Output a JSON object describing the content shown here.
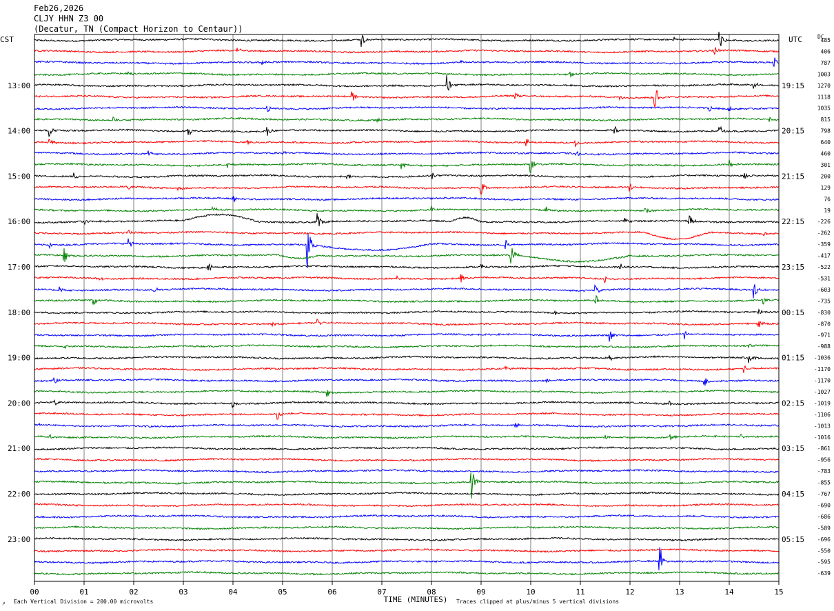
{
  "header": {
    "date": "Feb26,2026",
    "station": "CLJY HHN Z3 00",
    "location": "(Decatur, TN (Compact Horizon to Centaur))"
  },
  "left_zone": "CST",
  "right_zone": "UTC",
  "dc_label": "DC",
  "footer": {
    "scale_note": "Each Vertical Division =  200.00 microvolts",
    "clip_note": "Traces clipped at plus/minus 5 vertical divisions",
    "corner_mark": "↗"
  },
  "chart_data": {
    "type": "helicorder",
    "xlabel": "TIME (MINUTES)",
    "x_ticks": [
      "00",
      "01",
      "02",
      "03",
      "04",
      "05",
      "06",
      "07",
      "08",
      "09",
      "10",
      "11",
      "12",
      "13",
      "14",
      "15"
    ],
    "xlim": [
      0,
      15
    ],
    "trace_minutes": 15,
    "trace_count": 48,
    "trace_colors": [
      "#000000",
      "#ff0000",
      "#0000ff",
      "#008000"
    ],
    "left_hour_labels": [
      "13:00",
      "14:00",
      "15:00",
      "16:00",
      "17:00",
      "18:00",
      "19:00",
      "20:00",
      "21:00",
      "22:00",
      "23:00"
    ],
    "right_hour_labels": [
      "19:15",
      "20:15",
      "21:15",
      "22:15",
      "23:15",
      "00:15",
      "01:15",
      "02:15",
      "03:15",
      "04:15",
      "05:15"
    ],
    "dc_offsets": [
      "485",
      "406",
      "787",
      "1003",
      "1270",
      "1118",
      "1035",
      "815",
      "798",
      "640",
      "460",
      "301",
      "200",
      "129",
      "76",
      "19",
      "-226",
      "-262",
      "-359",
      "-417",
      "-522",
      "-531",
      "-603",
      "-735",
      "-830",
      "-870",
      "-971",
      "-988",
      "-1036",
      "-1170",
      "-1170",
      "-1027",
      "-1019",
      "-1106",
      "-1013",
      "-1016",
      "-861",
      "-956",
      "-783",
      "-855",
      "-767",
      "-690",
      "-686",
      "-589",
      "-696",
      "-550",
      "-595",
      "-639"
    ],
    "events": [
      {
        "trace": 0,
        "minute": 6.6,
        "amp": 1.4
      },
      {
        "trace": 0,
        "minute": 13.8,
        "amp": 2.2
      },
      {
        "trace": 0,
        "minute": 12.9,
        "amp": 0.6
      },
      {
        "trace": 1,
        "minute": 13.7,
        "amp": 0.8
      },
      {
        "trace": 1,
        "minute": 4.1,
        "amp": 0.5
      },
      {
        "trace": 2,
        "minute": 8.6,
        "amp": 0.5
      },
      {
        "trace": 2,
        "minute": 14.9,
        "amp": 1.2
      },
      {
        "trace": 2,
        "minute": 4.6,
        "amp": 0.4
      },
      {
        "trace": 3,
        "minute": 10.8,
        "amp": 0.8
      },
      {
        "trace": 3,
        "minute": 1.9,
        "amp": 0.5
      },
      {
        "trace": 4,
        "minute": 8.3,
        "amp": 2.4
      },
      {
        "trace": 4,
        "minute": 14.5,
        "amp": 0.9
      },
      {
        "trace": 5,
        "minute": 12.5,
        "amp": 3.0
      },
      {
        "trace": 5,
        "minute": 6.4,
        "amp": 1.3
      },
      {
        "trace": 5,
        "minute": 9.7,
        "amp": 0.7
      },
      {
        "trace": 5,
        "minute": 11.8,
        "amp": 0.6
      },
      {
        "trace": 6,
        "minute": 4.7,
        "amp": 0.6
      },
      {
        "trace": 6,
        "minute": 13.6,
        "amp": 0.6
      },
      {
        "trace": 6,
        "minute": 14.0,
        "amp": 0.6
      },
      {
        "trace": 7,
        "minute": 1.6,
        "amp": 0.7
      },
      {
        "trace": 7,
        "minute": 6.9,
        "amp": 0.5
      },
      {
        "trace": 7,
        "minute": 14.8,
        "amp": 0.6
      },
      {
        "trace": 8,
        "minute": 0.3,
        "amp": 1.2
      },
      {
        "trace": 8,
        "minute": 3.1,
        "amp": 1.0
      },
      {
        "trace": 8,
        "minute": 4.7,
        "amp": 0.8
      },
      {
        "trace": 8,
        "minute": 11.7,
        "amp": 0.9
      },
      {
        "trace": 8,
        "minute": 13.8,
        "amp": 1.3
      },
      {
        "trace": 9,
        "minute": 0.3,
        "amp": 0.8
      },
      {
        "trace": 9,
        "minute": 9.9,
        "amp": 1.0
      },
      {
        "trace": 9,
        "minute": 10.9,
        "amp": 0.8
      },
      {
        "trace": 9,
        "minute": 4.3,
        "amp": 0.6
      },
      {
        "trace": 10,
        "minute": 2.3,
        "amp": 0.6
      },
      {
        "trace": 10,
        "minute": 10.9,
        "amp": 0.6
      },
      {
        "trace": 10,
        "minute": 5.0,
        "amp": 0.4
      },
      {
        "trace": 11,
        "minute": 10.0,
        "amp": 1.6
      },
      {
        "trace": 11,
        "minute": 7.4,
        "amp": 1.0
      },
      {
        "trace": 11,
        "minute": 14.0,
        "amp": 0.9
      },
      {
        "trace": 11,
        "minute": 3.9,
        "amp": 0.6
      },
      {
        "trace": 12,
        "minute": 6.3,
        "amp": 1.3
      },
      {
        "trace": 12,
        "minute": 8.0,
        "amp": 1.1
      },
      {
        "trace": 12,
        "minute": 14.3,
        "amp": 1.0
      },
      {
        "trace": 12,
        "minute": 0.8,
        "amp": 0.6
      },
      {
        "trace": 13,
        "minute": 9.0,
        "amp": 1.6
      },
      {
        "trace": 13,
        "minute": 12.0,
        "amp": 0.9
      },
      {
        "trace": 13,
        "minute": 1.9,
        "amp": 0.6
      },
      {
        "trace": 13,
        "minute": 2.9,
        "amp": 0.6
      },
      {
        "trace": 14,
        "minute": 4.0,
        "amp": 0.9
      },
      {
        "trace": 15,
        "minute": 8.0,
        "amp": 0.9
      },
      {
        "trace": 15,
        "minute": 10.3,
        "amp": 0.8
      },
      {
        "trace": 15,
        "minute": 12.3,
        "amp": 0.8
      },
      {
        "trace": 15,
        "minute": 3.6,
        "amp": 0.6
      },
      {
        "trace": 16,
        "minute": 5.7,
        "amp": 1.9
      },
      {
        "trace": 16,
        "minute": 13.2,
        "amp": 1.3
      },
      {
        "trace": 16,
        "minute": 11.9,
        "amp": 0.8
      },
      {
        "trace": 16,
        "minute": 1.0,
        "amp": 0.8
      },
      {
        "trace": 17,
        "minute": 1.9,
        "amp": 0.5
      },
      {
        "trace": 17,
        "minute": 14.7,
        "amp": 0.5
      },
      {
        "trace": 18,
        "minute": 5.5,
        "amp": 4.5
      },
      {
        "trace": 18,
        "minute": 9.5,
        "amp": 1.0
      },
      {
        "trace": 18,
        "minute": 1.9,
        "amp": 1.0
      },
      {
        "trace": 18,
        "minute": 0.3,
        "amp": 0.6
      },
      {
        "trace": 19,
        "minute": 9.6,
        "amp": 2.4
      },
      {
        "trace": 19,
        "minute": 0.6,
        "amp": 1.6
      },
      {
        "trace": 20,
        "minute": 3.5,
        "amp": 1.0
      },
      {
        "trace": 20,
        "minute": 11.8,
        "amp": 0.8
      },
      {
        "trace": 20,
        "minute": 9.0,
        "amp": 0.6
      },
      {
        "trace": 21,
        "minute": 8.6,
        "amp": 0.8
      },
      {
        "trace": 21,
        "minute": 11.5,
        "amp": 0.7
      },
      {
        "trace": 21,
        "minute": 1.3,
        "amp": 0.6
      },
      {
        "trace": 21,
        "minute": 7.3,
        "amp": 0.5
      },
      {
        "trace": 22,
        "minute": 14.5,
        "amp": 1.9
      },
      {
        "trace": 22,
        "minute": 11.3,
        "amp": 1.2
      },
      {
        "trace": 22,
        "minute": 0.5,
        "amp": 1.2
      },
      {
        "trace": 22,
        "minute": 2.4,
        "amp": 0.8
      },
      {
        "trace": 23,
        "minute": 11.3,
        "amp": 1.5
      },
      {
        "trace": 23,
        "minute": 1.2,
        "amp": 1.0
      },
      {
        "trace": 23,
        "minute": 14.7,
        "amp": 0.8
      },
      {
        "trace": 24,
        "minute": 14.6,
        "amp": 0.7
      },
      {
        "trace": 24,
        "minute": 10.5,
        "amp": 0.5
      },
      {
        "trace": 25,
        "minute": 5.7,
        "amp": 0.8
      },
      {
        "trace": 25,
        "minute": 14.6,
        "amp": 0.7
      },
      {
        "trace": 25,
        "minute": 4.8,
        "amp": 0.5
      },
      {
        "trace": 26,
        "minute": 11.6,
        "amp": 1.1
      },
      {
        "trace": 26,
        "minute": 13.1,
        "amp": 0.9
      },
      {
        "trace": 27,
        "minute": 14.4,
        "amp": 0.7
      },
      {
        "trace": 27,
        "minute": 0.6,
        "amp": 0.5
      },
      {
        "trace": 28,
        "minute": 14.4,
        "amp": 1.0
      },
      {
        "trace": 28,
        "minute": 11.6,
        "amp": 0.5
      },
      {
        "trace": 29,
        "minute": 14.3,
        "amp": 0.8
      },
      {
        "trace": 29,
        "minute": 9.5,
        "amp": 0.5
      },
      {
        "trace": 30,
        "minute": 13.5,
        "amp": 1.1
      },
      {
        "trace": 30,
        "minute": 10.3,
        "amp": 0.7
      },
      {
        "trace": 30,
        "minute": 0.4,
        "amp": 0.6
      },
      {
        "trace": 31,
        "minute": 5.9,
        "amp": 1.0
      },
      {
        "trace": 32,
        "minute": 4.0,
        "amp": 0.9
      },
      {
        "trace": 32,
        "minute": 0.4,
        "amp": 0.7
      },
      {
        "trace": 32,
        "minute": 12.8,
        "amp": 0.5
      },
      {
        "trace": 33,
        "minute": 4.9,
        "amp": 1.0
      },
      {
        "trace": 34,
        "minute": 9.7,
        "amp": 0.8
      },
      {
        "trace": 34,
        "minute": 0.1,
        "amp": 0.5
      },
      {
        "trace": 35,
        "minute": 0.3,
        "amp": 0.8
      },
      {
        "trace": 35,
        "minute": 11.5,
        "amp": 0.6
      },
      {
        "trace": 35,
        "minute": 12.8,
        "amp": 0.6
      },
      {
        "trace": 35,
        "minute": 14.2,
        "amp": 0.8
      },
      {
        "trace": 39,
        "minute": 8.8,
        "amp": 3.5
      },
      {
        "trace": 46,
        "minute": 12.6,
        "amp": 3.3
      }
    ],
    "swings": [
      {
        "trace": 16,
        "start": 3.0,
        "end": 4.5,
        "amp": 1.3
      },
      {
        "trace": 16,
        "start": 8.4,
        "end": 9.0,
        "amp": 0.8
      },
      {
        "trace": 17,
        "start": 12.3,
        "end": 13.6,
        "amp": -1.2
      },
      {
        "trace": 18,
        "start": 5.6,
        "end": 8.0,
        "amp": -1.2
      },
      {
        "trace": 19,
        "start": 9.7,
        "end": 12.0,
        "amp": -1.0
      },
      {
        "trace": 19,
        "start": 4.9,
        "end": 5.7,
        "amp": -0.6
      }
    ]
  }
}
